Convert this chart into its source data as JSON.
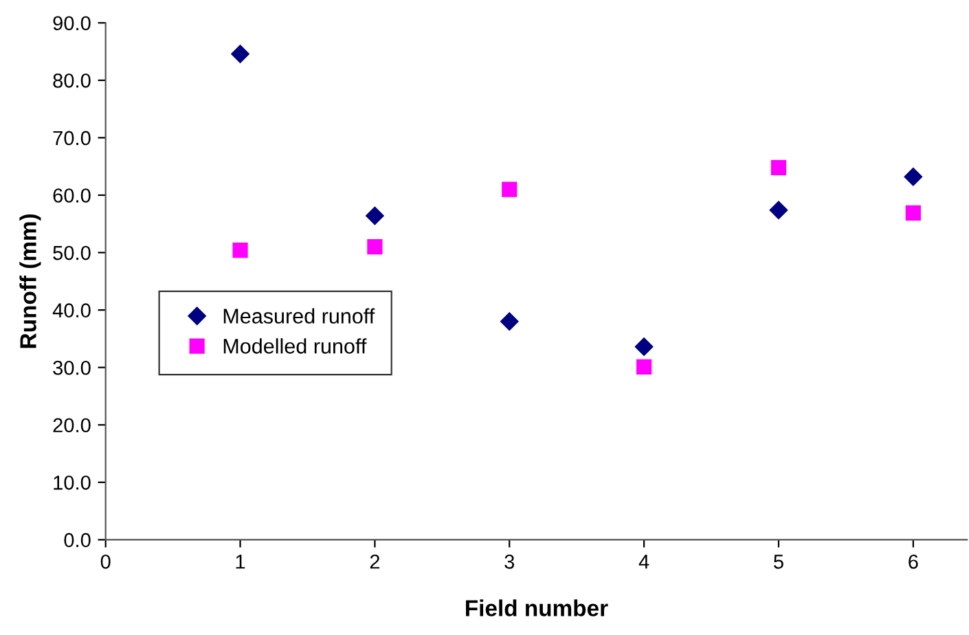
{
  "chart_data": {
    "type": "scatter",
    "xlabel": "Field number",
    "ylabel": "Runoff (mm)",
    "x": [
      1,
      2,
      3,
      4,
      5,
      6
    ],
    "series": [
      {
        "name": "Measured runoff",
        "color": "#000080",
        "marker": "diamond",
        "values": [
          84.6,
          56.4,
          38.0,
          33.6,
          57.4,
          63.2
        ]
      },
      {
        "name": "Modelled runoff",
        "color": "#ff00ff",
        "marker": "square",
        "values": [
          50.4,
          51.0,
          61.0,
          30.1,
          64.8,
          56.9
        ]
      }
    ],
    "xlim": [
      0,
      6.4
    ],
    "xticks": [
      0,
      1,
      2,
      3,
      4,
      5,
      6
    ],
    "ylim": [
      0,
      90
    ],
    "yticks": [
      {
        "value": 0,
        "label": "0.0"
      },
      {
        "value": 10,
        "label": "10.0"
      },
      {
        "value": 20,
        "label": "20.0"
      },
      {
        "value": 30,
        "label": "30.0"
      },
      {
        "value": 40,
        "label": "40.0"
      },
      {
        "value": 50,
        "label": "50.0"
      },
      {
        "value": 60,
        "label": "60.0"
      },
      {
        "value": 70,
        "label": "70.0"
      },
      {
        "value": 80,
        "label": "80.0"
      },
      {
        "value": 90,
        "label": "90.0"
      }
    ],
    "grid": false,
    "legend": "left"
  }
}
